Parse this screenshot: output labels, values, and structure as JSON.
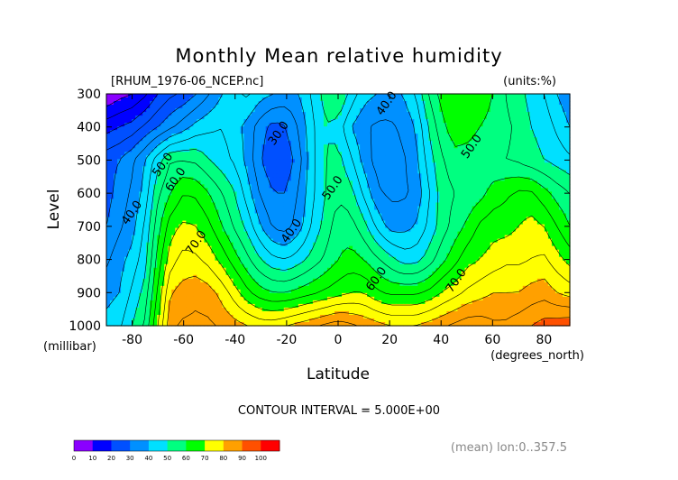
{
  "chart_data": {
    "type": "contour",
    "title": "Monthly Mean relative humidity",
    "file_label": "[RHUM_1976-06_NCEP.nc]",
    "units_label": "(units:%)",
    "xlabel": "Latitude",
    "ylabel": "Level",
    "x_unit_label": "(degrees_north)",
    "y_unit_label": "(millibar)",
    "xlim": [
      -90,
      90
    ],
    "ylim": [
      1000,
      300
    ],
    "x_ticks": [
      "-80",
      "-60",
      "-40",
      "-20",
      "0",
      "20",
      "40",
      "60",
      "80"
    ],
    "x_tick_values": [
      -80,
      -60,
      -40,
      -20,
      0,
      20,
      40,
      60,
      80
    ],
    "y_ticks": [
      "300",
      "400",
      "500",
      "600",
      "700",
      "800",
      "900",
      "1000"
    ],
    "y_tick_values": [
      300,
      400,
      500,
      600,
      700,
      800,
      900,
      1000
    ],
    "contour_interval_text": "CONTOUR INTERVAL = 5.000E+00",
    "footer_note": "(mean) lon:0..357.5",
    "contour_labels": [
      {
        "text": "30.0",
        "lat": -22,
        "lev": 425
      },
      {
        "text": "40.0",
        "lat": 20,
        "lev": 335
      },
      {
        "text": "50.0",
        "lat": 53,
        "lev": 465
      },
      {
        "text": "50.0",
        "lat": -67,
        "lev": 520
      },
      {
        "text": "60.0",
        "lat": -62,
        "lev": 565
      },
      {
        "text": "40.0",
        "lat": -79,
        "lev": 665
      },
      {
        "text": "50.0",
        "lat": -1,
        "lev": 590
      },
      {
        "text": "40.0",
        "lat": -17,
        "lev": 720
      },
      {
        "text": "70.0",
        "lat": -54,
        "lev": 755
      },
      {
        "text": "60.0",
        "lat": 16,
        "lev": 865
      },
      {
        "text": "70.0",
        "lat": 47,
        "lev": 870
      }
    ],
    "colorbar": {
      "levels": [
        "0",
        "10",
        "20",
        "30",
        "40",
        "50",
        "60",
        "70",
        "80",
        "90",
        "100"
      ],
      "colors": [
        "#8a00ff",
        "#0000ff",
        "#0050ff",
        "#0090ff",
        "#00e0ff",
        "#00ff80",
        "#00ff00",
        "#ffff00",
        "#ffa000",
        "#ff5000",
        "#ff0000"
      ]
    },
    "field": {
      "lats": [
        -90,
        -85,
        -80,
        -75,
        -70,
        -65,
        -60,
        -55,
        -50,
        -45,
        -40,
        -35,
        -30,
        -25,
        -20,
        -15,
        -10,
        -5,
        0,
        5,
        10,
        15,
        20,
        25,
        30,
        35,
        40,
        45,
        50,
        55,
        60,
        65,
        70,
        75,
        80,
        85,
        90
      ],
      "levels": [
        300,
        400,
        500,
        600,
        700,
        800,
        900,
        1000
      ],
      "values": [
        [
          5,
          8,
          10,
          14,
          20,
          24,
          26,
          30,
          35,
          40,
          44,
          46,
          42,
          40,
          38,
          40,
          46,
          52,
          56,
          48,
          42,
          40,
          38,
          40,
          45,
          55,
          62,
          65,
          65,
          64,
          60,
          55,
          52,
          48,
          45,
          40,
          36
        ],
        [
          18,
          20,
          22,
          26,
          30,
          34,
          38,
          42,
          44,
          45,
          42,
          38,
          32,
          28,
          30,
          36,
          44,
          50,
          48,
          40,
          36,
          34,
          34,
          36,
          40,
          50,
          58,
          63,
          62,
          60,
          58,
          56,
          54,
          50,
          48,
          44,
          40
        ],
        [
          28,
          30,
          34,
          40,
          48,
          55,
          55,
          54,
          50,
          47,
          44,
          38,
          30,
          26,
          27,
          33,
          44,
          50,
          52,
          46,
          38,
          33,
          32,
          34,
          38,
          47,
          54,
          58,
          58,
          57,
          56,
          55,
          54,
          52,
          50,
          48,
          46
        ],
        [
          28,
          32,
          36,
          42,
          54,
          60,
          65,
          64,
          60,
          55,
          50,
          42,
          34,
          30,
          30,
          36,
          44,
          50,
          54,
          52,
          44,
          36,
          34,
          34,
          36,
          44,
          52,
          55,
          56,
          58,
          62,
          64,
          66,
          66,
          62,
          58,
          55
        ],
        [
          30,
          34,
          38,
          46,
          58,
          68,
          71,
          70,
          66,
          60,
          54,
          48,
          40,
          34,
          33,
          38,
          46,
          52,
          58,
          57,
          52,
          44,
          38,
          38,
          40,
          46,
          52,
          57,
          61,
          66,
          68,
          68,
          70,
          72,
          70,
          65,
          60
        ],
        [
          34,
          38,
          42,
          48,
          62,
          73,
          77,
          76,
          73,
          68,
          62,
          56,
          50,
          46,
          45,
          48,
          52,
          56,
          60,
          62,
          60,
          56,
          52,
          48,
          48,
          52,
          58,
          63,
          68,
          70,
          72,
          74,
          74,
          75,
          76,
          72,
          68
        ],
        [
          38,
          40,
          46,
          52,
          66,
          80,
          82,
          84,
          82,
          78,
          72,
          66,
          62,
          60,
          60,
          62,
          64,
          66,
          68,
          70,
          70,
          66,
          64,
          64,
          64,
          66,
          70,
          73,
          76,
          78,
          80,
          80,
          80,
          82,
          83,
          80,
          78
        ],
        [
          42,
          44,
          50,
          56,
          70,
          84,
          86,
          86,
          86,
          84,
          82,
          80,
          78,
          78,
          80,
          82,
          84,
          86,
          88,
          86,
          84,
          82,
          80,
          80,
          80,
          82,
          84,
          86,
          88,
          88,
          86,
          86,
          88,
          90,
          92,
          93,
          94
        ]
      ]
    }
  }
}
